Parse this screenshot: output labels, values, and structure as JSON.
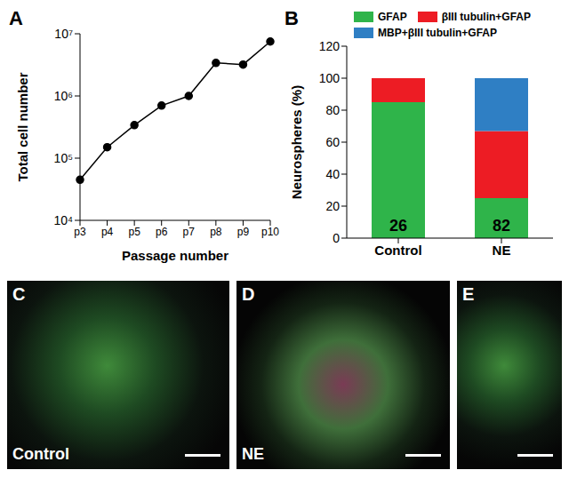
{
  "chart_data": [
    {
      "panel": "A",
      "type": "line",
      "x_label": "Passage number",
      "y_label": "Total cell number",
      "categories": [
        "p3",
        "p4",
        "p5",
        "p6",
        "p7",
        "p8",
        "p9",
        "p10"
      ],
      "values": [
        45000,
        150000,
        340000,
        700000,
        1000000,
        3400000,
        3200000,
        7500000
      ],
      "color": "#000000",
      "marker": "circle",
      "log": "y",
      "grid": false,
      "ylim": [
        10000,
        10000000
      ],
      "yticks": [
        {
          "value": 10000,
          "label": "10⁴"
        },
        {
          "value": 100000,
          "label": "10⁵"
        },
        {
          "value": 1000000,
          "label": "10⁶"
        },
        {
          "value": 10000000,
          "label": "10⁷"
        }
      ]
    },
    {
      "panel": "B",
      "type": "bar",
      "stacked": true,
      "y_label": "Neurospheres (%)",
      "categories": [
        "Control",
        "NE"
      ],
      "counts": [
        26,
        82
      ],
      "series": [
        {
          "name": "GFAP",
          "color": "#2fb44a",
          "values": [
            85,
            25
          ]
        },
        {
          "name": "βIII tubulin+GFAP",
          "color": "#ed1c24",
          "values": [
            15,
            42
          ]
        },
        {
          "name": "MBP+βIII tubulin+GFAP",
          "color": "#2f7fc4",
          "values": [
            0,
            33
          ]
        }
      ],
      "legend": "top",
      "grid": false,
      "ylim": [
        0,
        120
      ],
      "yticks": [
        0,
        20,
        40,
        60,
        80,
        100,
        120
      ]
    }
  ],
  "images": [
    {
      "panel": "C",
      "caption": "Control"
    },
    {
      "panel": "D",
      "caption": "NE"
    },
    {
      "panel": "E"
    }
  ]
}
